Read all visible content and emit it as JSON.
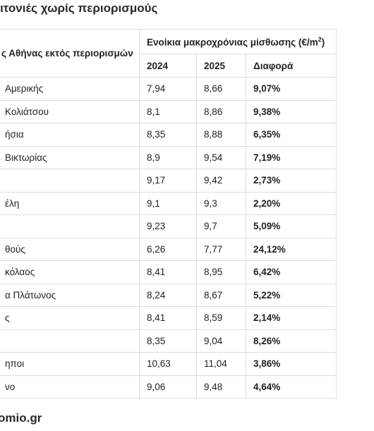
{
  "title": "ειτονιές χωρίς περιορισμούς",
  "table": {
    "area_header": "ς Αθήνας εκτός περιορισμών",
    "group_header": "Ενοίκια μακροχρόνιας μίσθωσης (€/m",
    "group_header_sup": "2",
    "group_header_close": ")",
    "col_2024": "2024",
    "col_2025": "2025",
    "col_diff": "Διαφορά",
    "rows": [
      {
        "area": "Αμερικής",
        "v2024": "7,94",
        "v2025": "8,66",
        "diff": "9,07%"
      },
      {
        "area": "Κολιάτσου",
        "v2024": "8,1",
        "v2025": "8,86",
        "diff": "9,38%"
      },
      {
        "area": "ήσια",
        "v2024": "8,35",
        "v2025": "8,88",
        "diff": "6,35%"
      },
      {
        "area": "Βικτωρίας",
        "v2024": "8,9",
        "v2025": "9,54",
        "diff": "7,19%"
      },
      {
        "area": "",
        "v2024": "9,17",
        "v2025": "9,42",
        "diff": "2,73%"
      },
      {
        "area": "έλη",
        "v2024": "9,1",
        "v2025": "9,3",
        "diff": "2,20%"
      },
      {
        "area": "",
        "v2024": "9,23",
        "v2025": "9,7",
        "diff": "5,09%"
      },
      {
        "area": "θούς",
        "v2024": "6,26",
        "v2025": "7,77",
        "diff": "24,12%"
      },
      {
        "area": "κόλαος",
        "v2024": "8,41",
        "v2025": "8,95",
        "diff": "6,42%"
      },
      {
        "area": "α Πλάτωνος",
        "v2024": "8,24",
        "v2025": "8,67",
        "diff": "5,22%"
      },
      {
        "area": "ς",
        "v2024": "8,41",
        "v2025": "8,59",
        "diff": "2,14%"
      },
      {
        "area": "",
        "v2024": "8,35",
        "v2025": "9,04",
        "diff": "8,26%"
      },
      {
        "area": "ηποι",
        "v2024": "10,63",
        "v2025": "11,04",
        "diff": "3,86%"
      },
      {
        "area": "νο",
        "v2024": "9,06",
        "v2025": "9,48",
        "diff": "4,64%"
      }
    ]
  },
  "source": "omio.gr"
}
